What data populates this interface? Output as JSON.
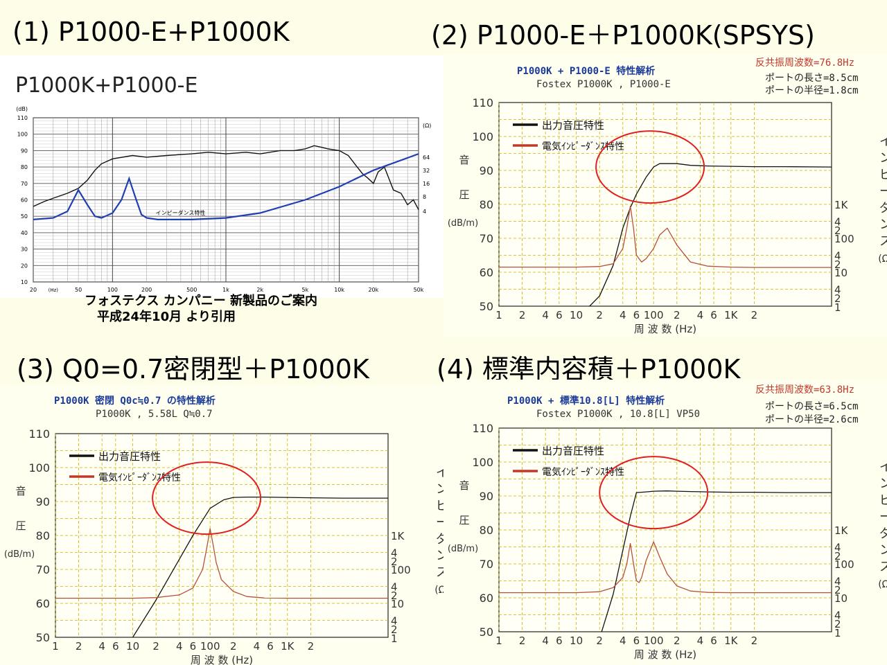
{
  "headings": {
    "h1": "(1) P1000-E+P1000K",
    "h2": "(2) P1000-E＋P1000K(SPSYS)",
    "h3": "(3) Q0=0.7密閉型＋P1000K",
    "h4": "(4) 標準内容積＋P1000K"
  },
  "panel1": {
    "title": "P1000K+P1000-E",
    "caption_line1": "フォステクス カンパニー 新製品のご案内",
    "caption_line2": "平成24年10月 より引用"
  },
  "sim_common": {
    "ylabel_chars": [
      "音",
      "圧",
      "(dB/m)"
    ],
    "right_label_chars": [
      "イ",
      "ン",
      "ビ",
      "ー",
      "ダ",
      "ン",
      "ス",
      "(Ω)"
    ],
    "xlabel": "周 波 数 (Hz)",
    "legend": [
      "出力音圧特性",
      "電気ｲﾝﾋﾟｰﾀﾞﾝｽ特性"
    ],
    "x_tick_labels": [
      "1",
      "2",
      "4",
      "6",
      "10",
      "2",
      "4",
      "6",
      "100",
      "2",
      "4",
      "6",
      "1K",
      "2"
    ],
    "y_tick_labels": [
      "110",
      "100",
      "90",
      "80",
      "70",
      "60",
      "50"
    ],
    "right_tick_labels": [
      "1K",
      "4",
      "2",
      "100",
      "4",
      "2",
      "10",
      "4",
      "2",
      "1"
    ]
  },
  "panel2": {
    "title": "P1000K + P1000-E 特性解析",
    "subtitle": "Fostex P1000K , P1000-E",
    "resonance": "反共振周波数=76.8Hz",
    "port_length": "ポートの長さ=8.5cm",
    "port_radius": "ポートの半径=1.8cm"
  },
  "panel3": {
    "title": "P1000K 密閉 Q0c≒0.7 の特性解析",
    "subtitle": "P1000K , 5.58L Q≒0.7"
  },
  "panel4": {
    "title": "P1000K + 標準10.8[L] 特性解析",
    "subtitle": "Fostex P1000K , 10.8[L] VP50",
    "resonance": "反共振周波数=63.8Hz",
    "port_length": "ポートの長さ=6.5cm",
    "port_radius": "ポートの半径=2.6cm"
  },
  "colors": {
    "spl": "#111111",
    "impedance": "#b5503a",
    "circle": "#e02020",
    "grid": "#c8b400",
    "measured_imp": "#1f3fb0"
  },
  "chart_data": [
    {
      "type": "line",
      "title": "P1000K+P1000-E",
      "x_scale": "log",
      "xlim": [
        20,
        50000
      ],
      "ylim": [
        10,
        110
      ],
      "x_tick_labels": [
        "20",
        "50",
        "100",
        "200",
        "500",
        "1k",
        "2k",
        "5k",
        "10k",
        "20k",
        "50k"
      ],
      "y_tick_labels": [
        "(dB)",
        "110",
        "100",
        "90",
        "80",
        "70",
        "60",
        "50",
        "40",
        "30",
        "20",
        "10"
      ],
      "right_tick_labels": [
        "(Ω)",
        "64",
        "32",
        "16",
        "8",
        "4"
      ],
      "annotation": "インピーダンス特性",
      "series": [
        {
          "x": [
            20,
            25,
            30,
            40,
            50,
            60,
            70,
            80,
            100,
            150,
            200,
            300,
            500,
            700,
            1000,
            1500,
            2000,
            3000,
            4000,
            5000,
            6000,
            7000,
            8000,
            10000,
            12000,
            14000,
            16000,
            18000,
            20000,
            22000,
            25000,
            30000,
            35000,
            40000,
            45000,
            50000
          ],
          "y": [
            56,
            59,
            61,
            64,
            67,
            72,
            78,
            82,
            85,
            87,
            86,
            87,
            88,
            89,
            88,
            89,
            88,
            90,
            90,
            91,
            93,
            92,
            91,
            90,
            87,
            81,
            76,
            73,
            70,
            77,
            80,
            66,
            64,
            57,
            60,
            54
          ]
        },
        {
          "name": "インピーダンス特性",
          "x": [
            20,
            30,
            40,
            50,
            60,
            70,
            80,
            100,
            120,
            140,
            160,
            180,
            200,
            250,
            300,
            500,
            1000,
            2000,
            5000,
            10000,
            20000,
            50000
          ],
          "y": [
            48,
            49,
            53,
            66,
            57,
            50,
            49,
            52,
            60,
            73,
            61,
            51,
            49,
            48,
            48,
            48,
            49,
            52,
            60,
            68,
            78,
            88
          ]
        }
      ]
    },
    {
      "type": "line",
      "title": "P1000K + P1000-E 特性解析",
      "x_scale": "log",
      "xlim": [
        1,
        20000
      ],
      "ylim": [
        50,
        110
      ],
      "series": [
        {
          "name": "出力音圧特性",
          "x": [
            10,
            20,
            30,
            40,
            50,
            60,
            80,
            100,
            120,
            150,
            200,
            300,
            500,
            1000,
            2000,
            5000,
            20000
          ],
          "y": [
            46,
            53,
            62,
            73,
            79,
            83,
            88,
            91,
            92,
            92,
            92,
            91.5,
            91.3,
            91.2,
            91.1,
            91.1,
            91
          ]
        },
        {
          "name": "電気ｲﾝﾋﾟｰﾀﾞﾝｽ特性",
          "x": [
            1,
            10,
            20,
            30,
            40,
            45,
            50,
            55,
            60,
            70,
            80,
            100,
            120,
            150,
            200,
            300,
            500,
            1000,
            2000,
            5000,
            20000
          ],
          "y": [
            61.5,
            61.5,
            61.7,
            62.5,
            67,
            73,
            79.5,
            73,
            65,
            63,
            64,
            67,
            71,
            73,
            68,
            63,
            61.8,
            61.5,
            61.4,
            61.4,
            61.4
          ]
        }
      ]
    },
    {
      "type": "line",
      "title": "P1000K 密閉 Q0c≒0.7 の特性解析",
      "x_scale": "log",
      "xlim": [
        1,
        20000
      ],
      "ylim": [
        50,
        110
      ],
      "series": [
        {
          "name": "出力音圧特性",
          "x": [
            10,
            20,
            40,
            60,
            100,
            150,
            200,
            300,
            500,
            1000,
            2000,
            5000,
            20000
          ],
          "y": [
            50,
            61,
            73,
            80,
            88,
            90.5,
            91.2,
            91.3,
            91.3,
            91.2,
            91.1,
            91,
            91
          ]
        },
        {
          "name": "電気ｲﾝﾋﾟｰﾀﾞﾝｽ特性",
          "x": [
            1,
            10,
            20,
            40,
            60,
            80,
            90,
            100,
            110,
            120,
            140,
            200,
            300,
            500,
            1000,
            20000
          ],
          "y": [
            61.5,
            61.5,
            61.7,
            62.5,
            64.5,
            70,
            76,
            82,
            77,
            72,
            67,
            63.5,
            62,
            61.6,
            61.5,
            61.5
          ]
        }
      ]
    },
    {
      "type": "line",
      "title": "P1000K + 標準10.8[L] 特性解析",
      "x_scale": "log",
      "xlim": [
        1,
        20000
      ],
      "ylim": [
        50,
        110
      ],
      "series": [
        {
          "name": "出力音圧特性",
          "x": [
            20,
            30,
            40,
            50,
            60,
            80,
            100,
            150,
            200,
            300,
            500,
            1000,
            2000,
            5000,
            20000
          ],
          "y": [
            48,
            61,
            74,
            84,
            91,
            91.2,
            91.4,
            91.5,
            91.4,
            91.3,
            91.2,
            91.1,
            91.1,
            91,
            91
          ]
        },
        {
          "name": "電気ｲﾝﾋﾟｰﾀﾞﾝｽ特性",
          "x": [
            1,
            10,
            20,
            30,
            40,
            45,
            50,
            55,
            60,
            65,
            70,
            80,
            100,
            120,
            150,
            200,
            300,
            500,
            1000,
            20000
          ],
          "y": [
            61.5,
            61.5,
            61.8,
            63,
            66,
            70,
            76,
            70,
            65,
            64.5,
            66,
            71,
            76.5,
            72,
            67,
            63.5,
            62,
            61.6,
            61.5,
            61.5
          ]
        }
      ]
    }
  ]
}
